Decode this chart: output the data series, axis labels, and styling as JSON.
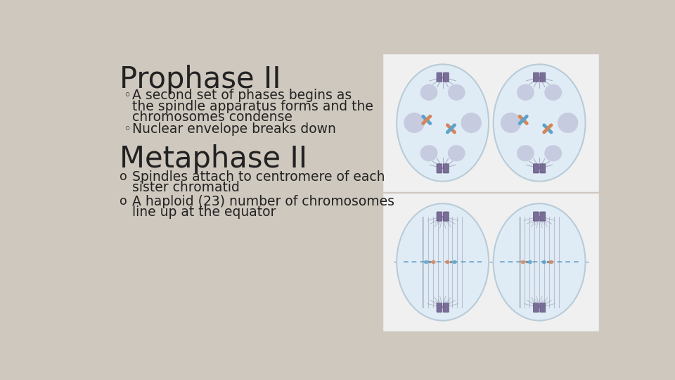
{
  "background_color": "#cfc8be",
  "title1": "Prophase II",
  "title2": "Metaphase II",
  "bullet1_marker": "◦",
  "bullet1_line1": "A second set of phases begins as",
  "bullet1_line2": "  the spindle apparatus forms and the",
  "bullet1_line3": "  chromosomes condense",
  "bullet2_marker": "◦",
  "bullet2_text": "Nuclear envelope breaks down",
  "bullet3_marker": "o",
  "bullet3_line1": "Spindles attach to centromere of each",
  "bullet3_line2": "  sister chromatid",
  "bullet4_marker": "o",
  "bullet4_line1": "A haploid (23) number of chromosomes",
  "bullet4_line2": "  line up at the equator",
  "title1_fontsize": 30,
  "title2_fontsize": 30,
  "body_fontsize": 13.5,
  "text_color": "#222222",
  "cell_color": "#dce8f0",
  "cell_edge": "#c0ccd8",
  "inner_color": "#e8eff5",
  "shadow_color": "#a8a0c0",
  "centriole_color": "#7a6e98",
  "fiber_color": "#a0a0b8",
  "chrom_blue": "#5ba3c9",
  "chrom_orange": "#d4855a",
  "dashed_color": "#7ab0d8",
  "white_box": "#f0f0f0",
  "white_edge": "#d0c8c0"
}
